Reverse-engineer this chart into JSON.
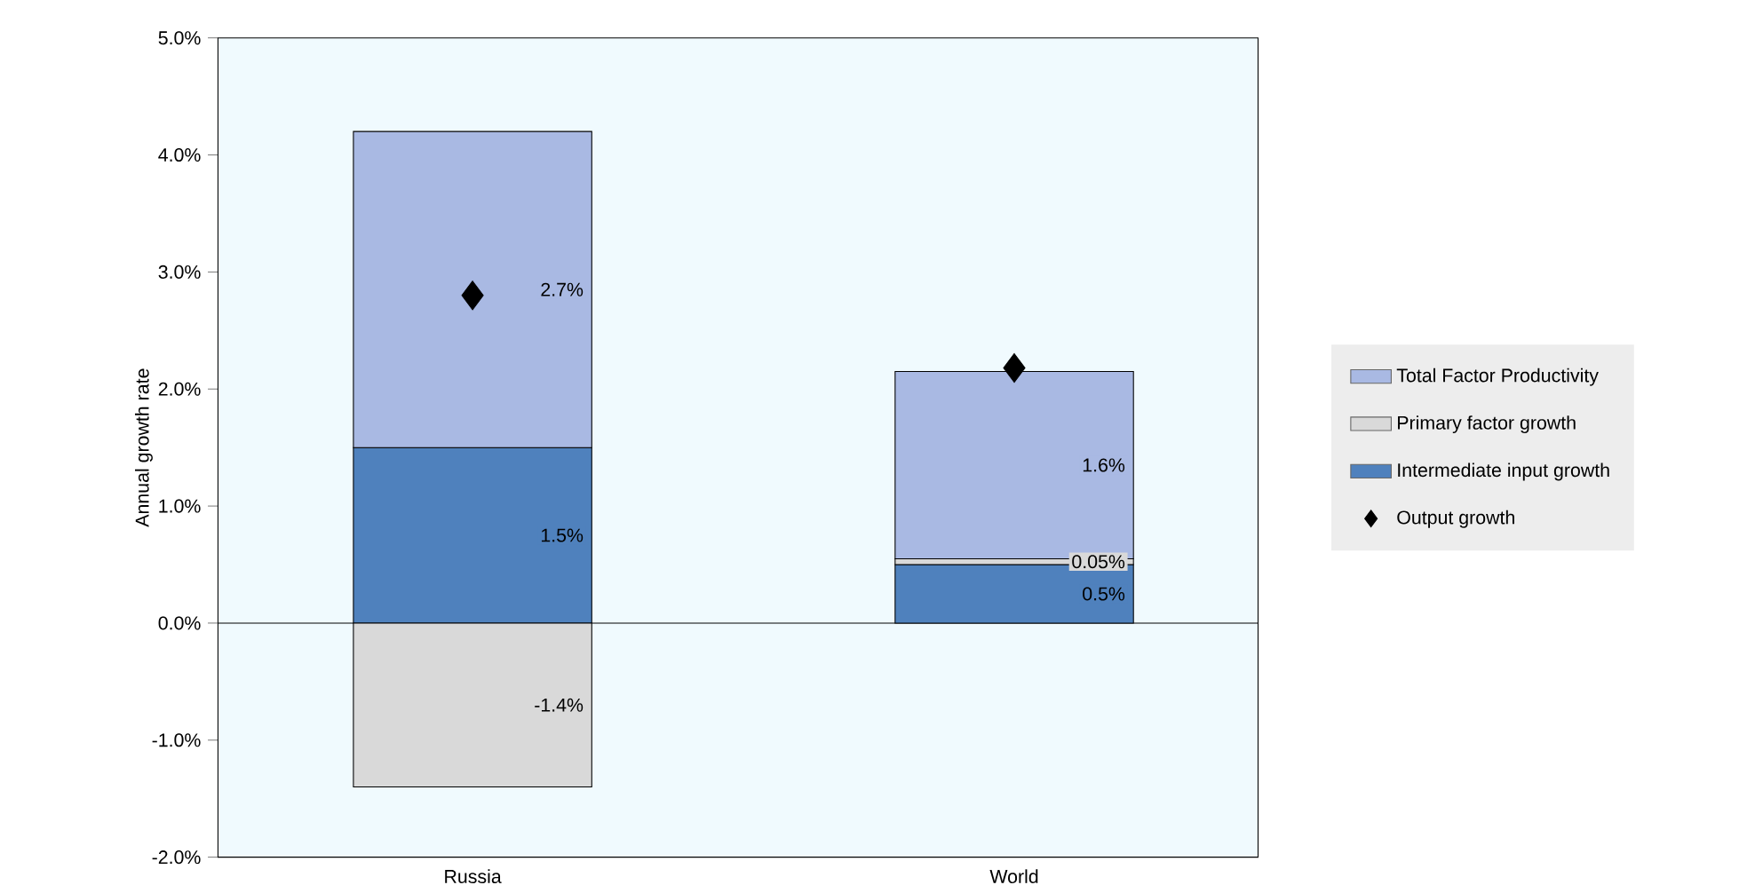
{
  "chart_data": {
    "type": "bar",
    "stacked": true,
    "categories": [
      "Russia",
      "World"
    ],
    "ylabel": "Annual growth rate",
    "ylim": [
      -2,
      5
    ],
    "yticks": [
      {
        "value": -2,
        "label": "-2.0%"
      },
      {
        "value": -1,
        "label": "-1.0%"
      },
      {
        "value": 0,
        "label": "0.0%"
      },
      {
        "value": 1,
        "label": "1.0%"
      },
      {
        "value": 2,
        "label": "2.0%"
      },
      {
        "value": 3,
        "label": "3.0%"
      },
      {
        "value": 4,
        "label": "4.0%"
      },
      {
        "value": 5,
        "label": "5.0%"
      }
    ],
    "legend": "right",
    "series": [
      {
        "name": "Intermediate input growth",
        "color": "#4f81bd",
        "values": [
          1.5,
          0.5
        ],
        "value_labels": [
          "1.5%",
          "0.5%"
        ]
      },
      {
        "name": "Primary factor growth",
        "color": "#d9d9d9",
        "values": [
          -1.4,
          0.05
        ],
        "value_labels": [
          "-1.4%",
          "0.05%"
        ]
      },
      {
        "name": "Total Factor Productivity",
        "color": "#a9b9e3",
        "values": [
          2.7,
          1.6
        ],
        "value_labels": [
          "2.7%",
          "1.6%"
        ]
      },
      {
        "name": "Output growth",
        "type": "scatter",
        "marker": "diamond",
        "color": "#000000",
        "values": [
          2.8,
          2.18
        ]
      }
    ]
  }
}
